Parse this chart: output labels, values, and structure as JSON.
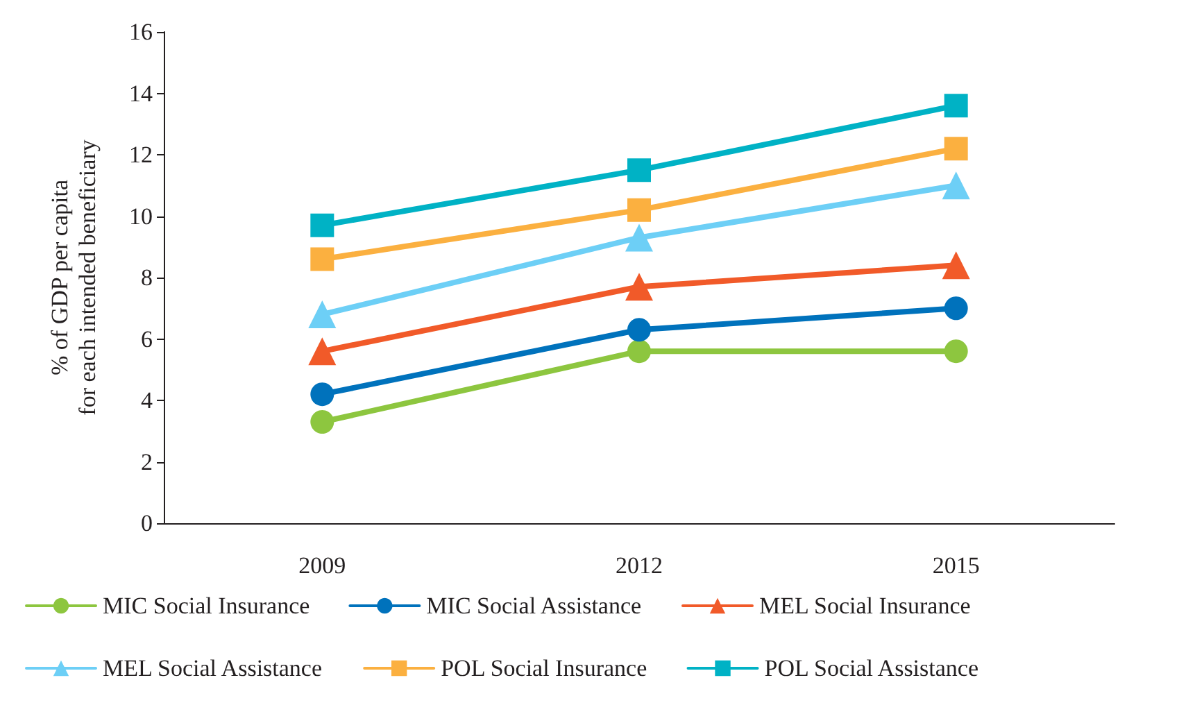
{
  "chart_data": {
    "type": "line",
    "ylabel": "% of GDP per capita\nfor each intended beneficiary",
    "categories": [
      "2009",
      "2012",
      "2015"
    ],
    "ylim": [
      0,
      16
    ],
    "yticks": [
      0,
      2,
      4,
      6,
      8,
      10,
      12,
      14,
      16
    ],
    "grid": false,
    "legend": "bottom",
    "line_style": "solid",
    "series": [
      {
        "name": "MIC Social Insurance",
        "color": "#8dc63f",
        "marker": "circle",
        "values": [
          3.3,
          5.6,
          5.6
        ]
      },
      {
        "name": "MIC Social Assistance",
        "color": "#0072bc",
        "marker": "circle",
        "values": [
          4.2,
          6.3,
          7.0
        ]
      },
      {
        "name": "MEL Social Insurance",
        "color": "#f15a29",
        "marker": "triangle",
        "values": [
          5.6,
          7.7,
          8.4
        ]
      },
      {
        "name": "MEL Social Assistance",
        "color": "#6dcff6",
        "marker": "triangle",
        "values": [
          6.8,
          9.3,
          11.0
        ]
      },
      {
        "name": "POL Social Insurance",
        "color": "#fbb040",
        "marker": "square",
        "values": [
          8.6,
          10.2,
          12.2
        ]
      },
      {
        "name": "POL Social Assistance",
        "color": "#00b2c5",
        "marker": "square",
        "values": [
          9.7,
          11.5,
          13.6
        ]
      }
    ]
  }
}
